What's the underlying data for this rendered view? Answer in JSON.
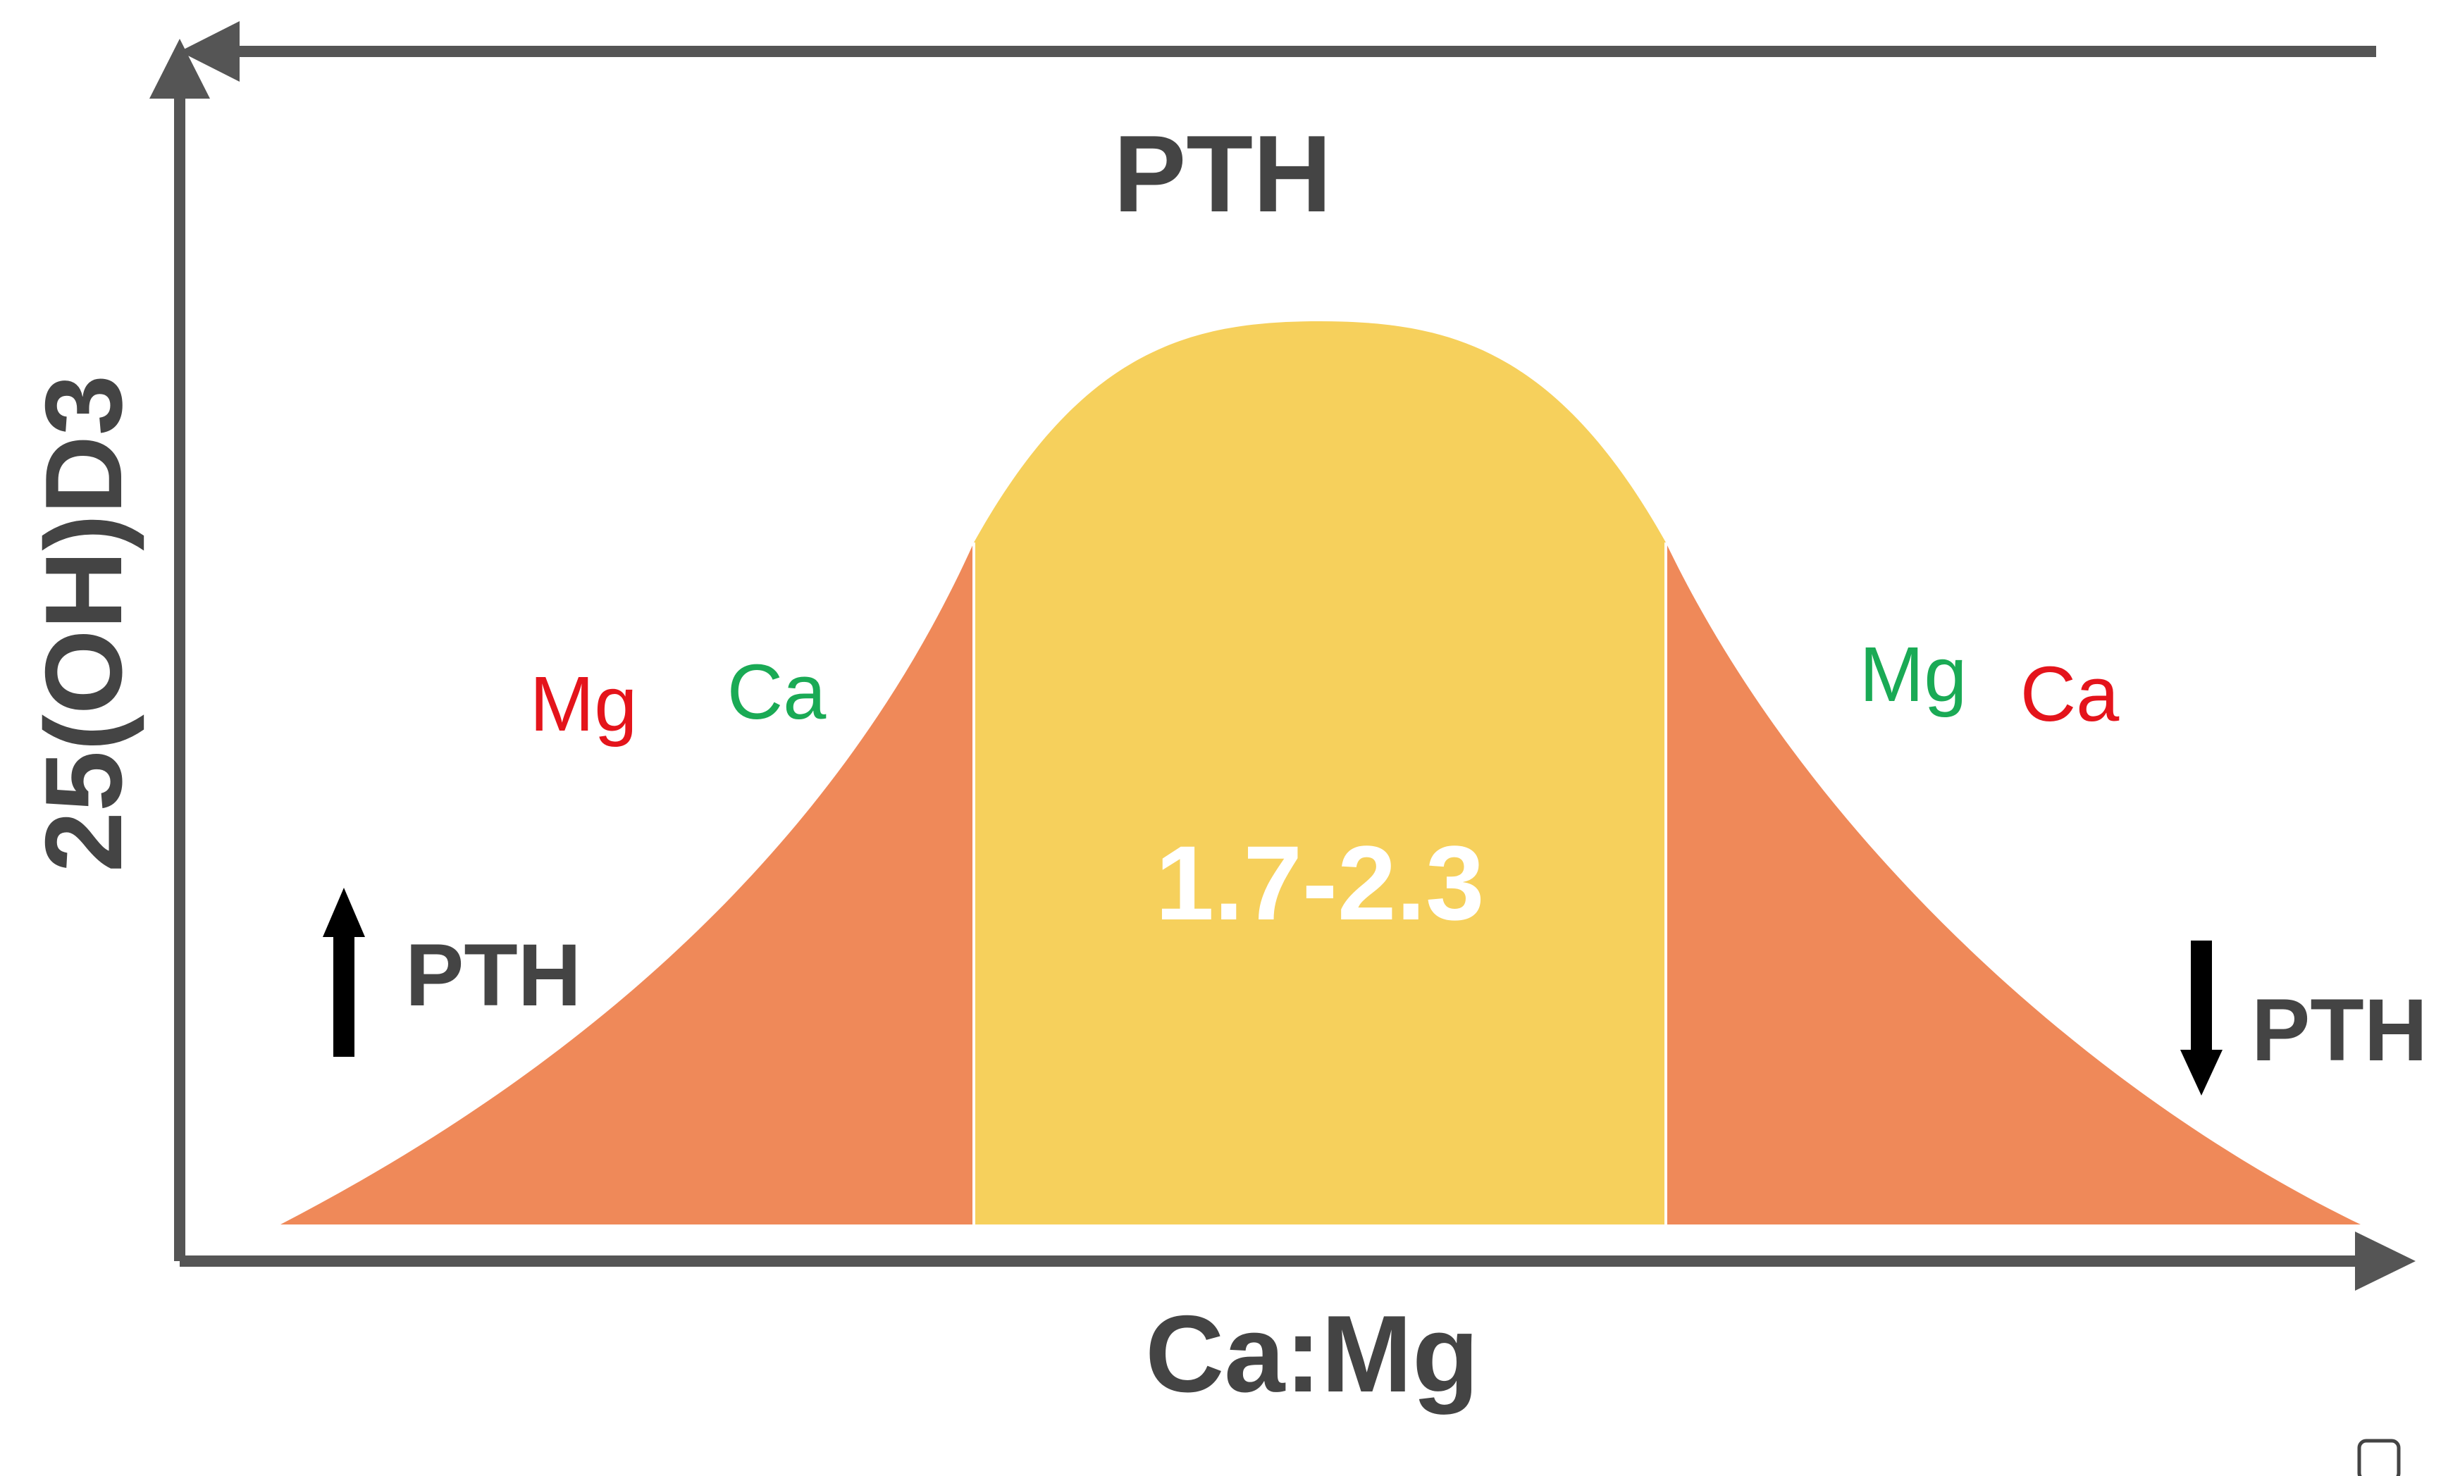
{
  "title": "PTH",
  "x_axis_label": "Ca:Mg",
  "y_axis_label": "25(OH)D3",
  "center_range_label": "1.7-2.3",
  "left_side": {
    "label_1": "Mg",
    "label_2": "Ca",
    "pth_label": "PTH",
    "pth_direction": "up"
  },
  "right_side": {
    "label_1": "Mg",
    "label_2": "Ca",
    "pth_label": "PTH",
    "pth_direction": "down"
  },
  "colors": {
    "axis": "#555555",
    "text": "#444444",
    "optimal_zone": "#F6D05C",
    "tail_zone": "#EF8959",
    "red": "#E4141B",
    "green": "#1AAA55",
    "arrow": "#000000",
    "range_text": "#FFFFFF"
  }
}
